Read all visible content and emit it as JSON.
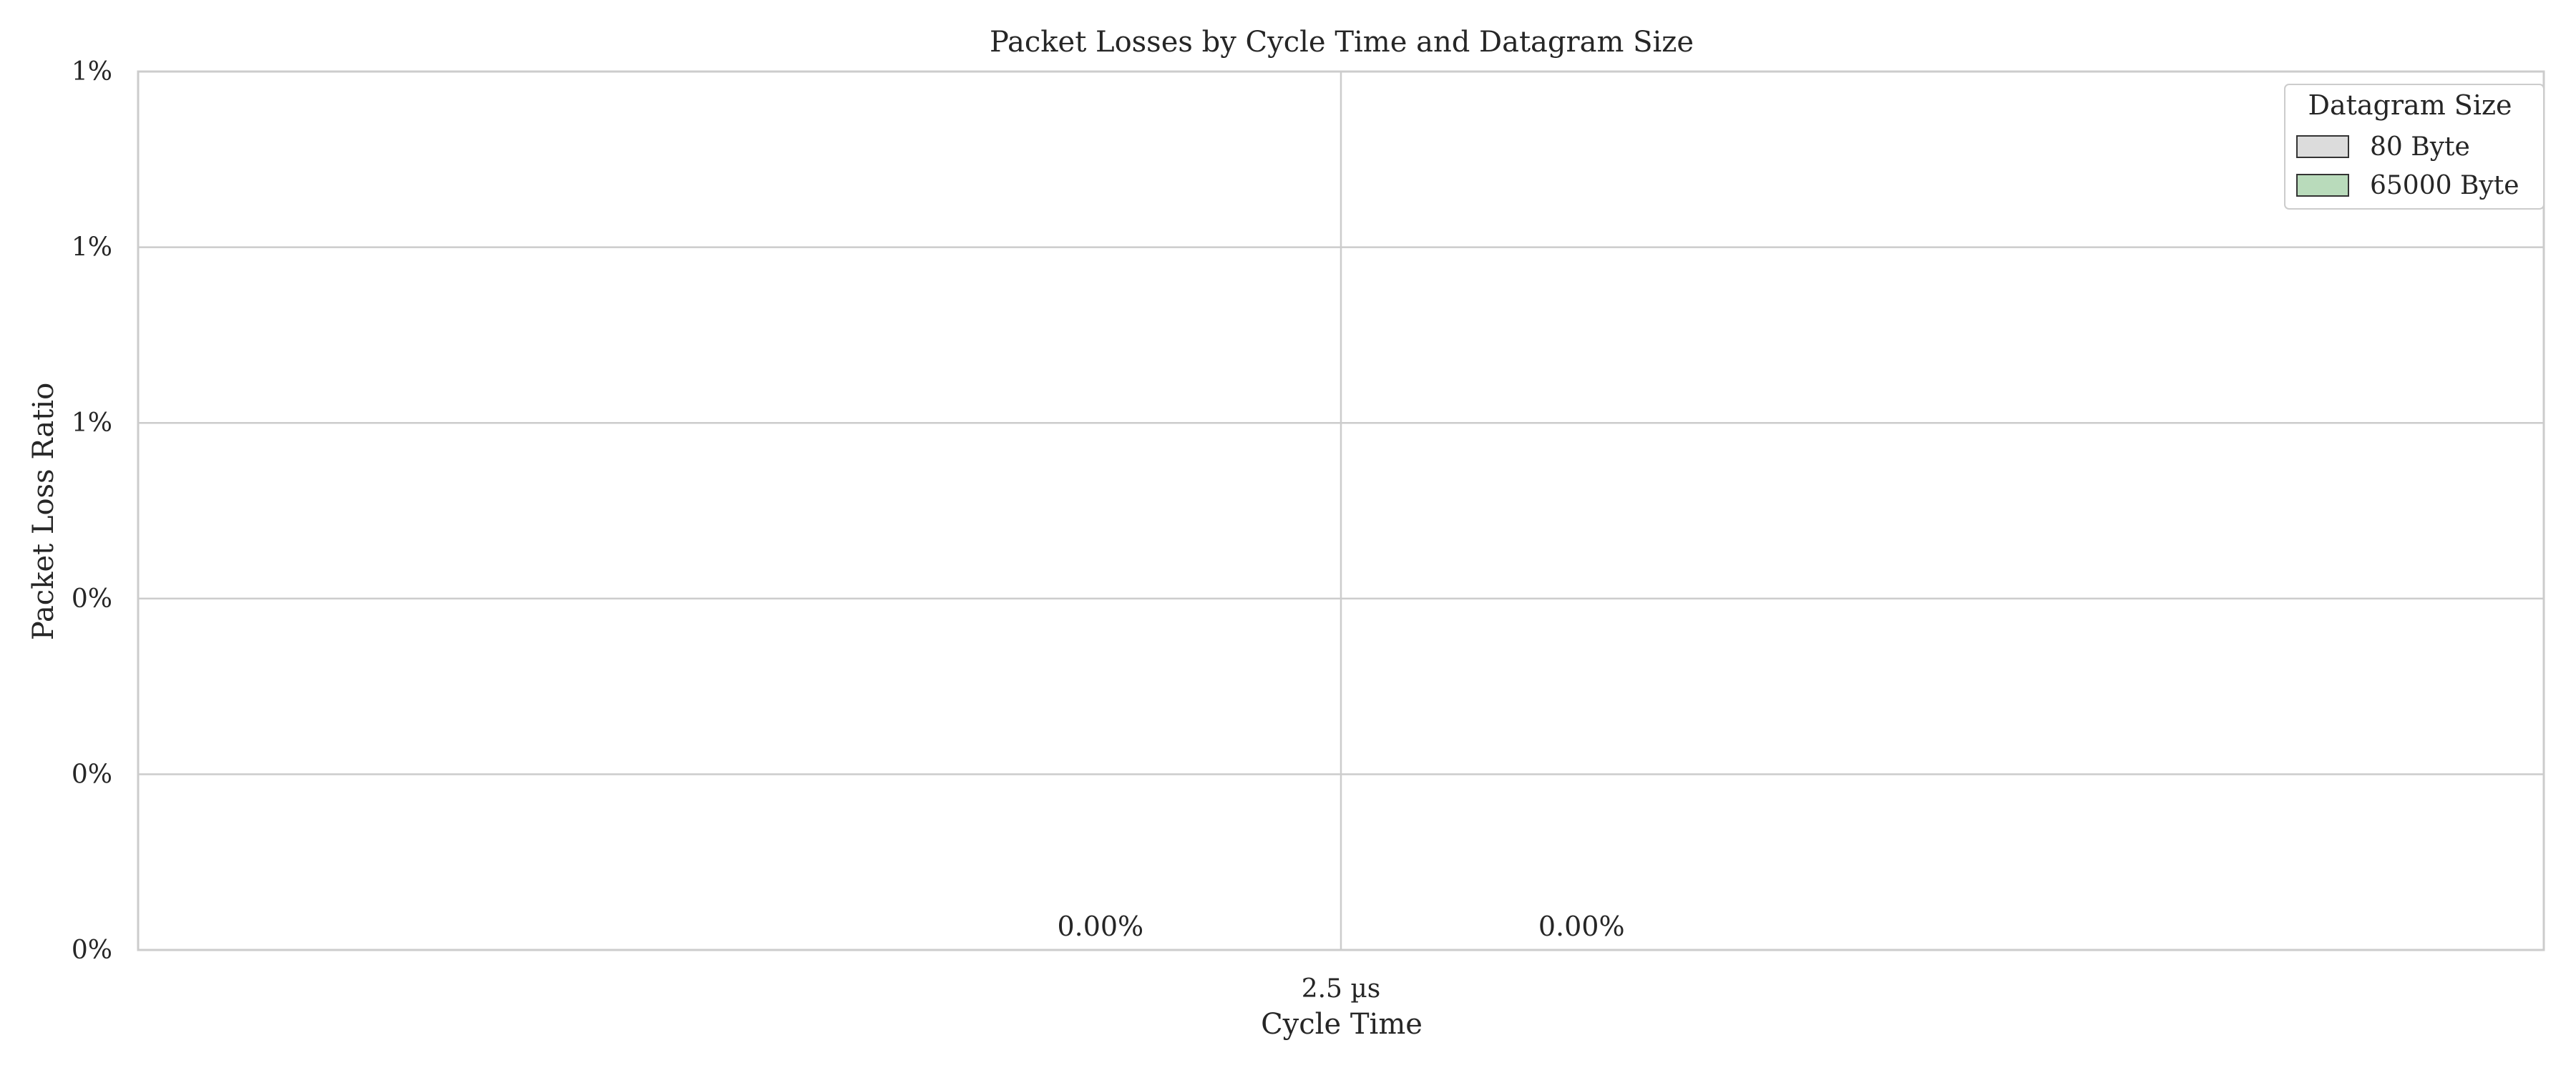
{
  "chart_data": {
    "type": "bar",
    "title": "Packet Losses by Cycle Time and Datagram Size",
    "xlabel": "Cycle Time",
    "ylabel": "Packet Loss Ratio",
    "categories": [
      "2.5 µs"
    ],
    "series": [
      {
        "name": "80 Byte",
        "values": [
          0.0
        ],
        "color": "#dcdcdc",
        "data_label": "0.00%"
      },
      {
        "name": "65000 Byte",
        "values": [
          0.0
        ],
        "color": "#b9dbbb",
        "data_label": "0.00%"
      }
    ],
    "ylim": [
      0,
      0.01
    ],
    "yticks": [
      0,
      0.002,
      0.004,
      0.006,
      0.008,
      0.01
    ],
    "ytick_labels": [
      "0%",
      "0%",
      "0%",
      "1%",
      "1%",
      "1%"
    ],
    "grid": true,
    "legend": {
      "title": "Datagram Size",
      "position": "top-right"
    },
    "colors": {
      "grid": "#cccccc",
      "spine": "#cccccc",
      "bar_edge": "#333333",
      "text": "#262626"
    }
  }
}
